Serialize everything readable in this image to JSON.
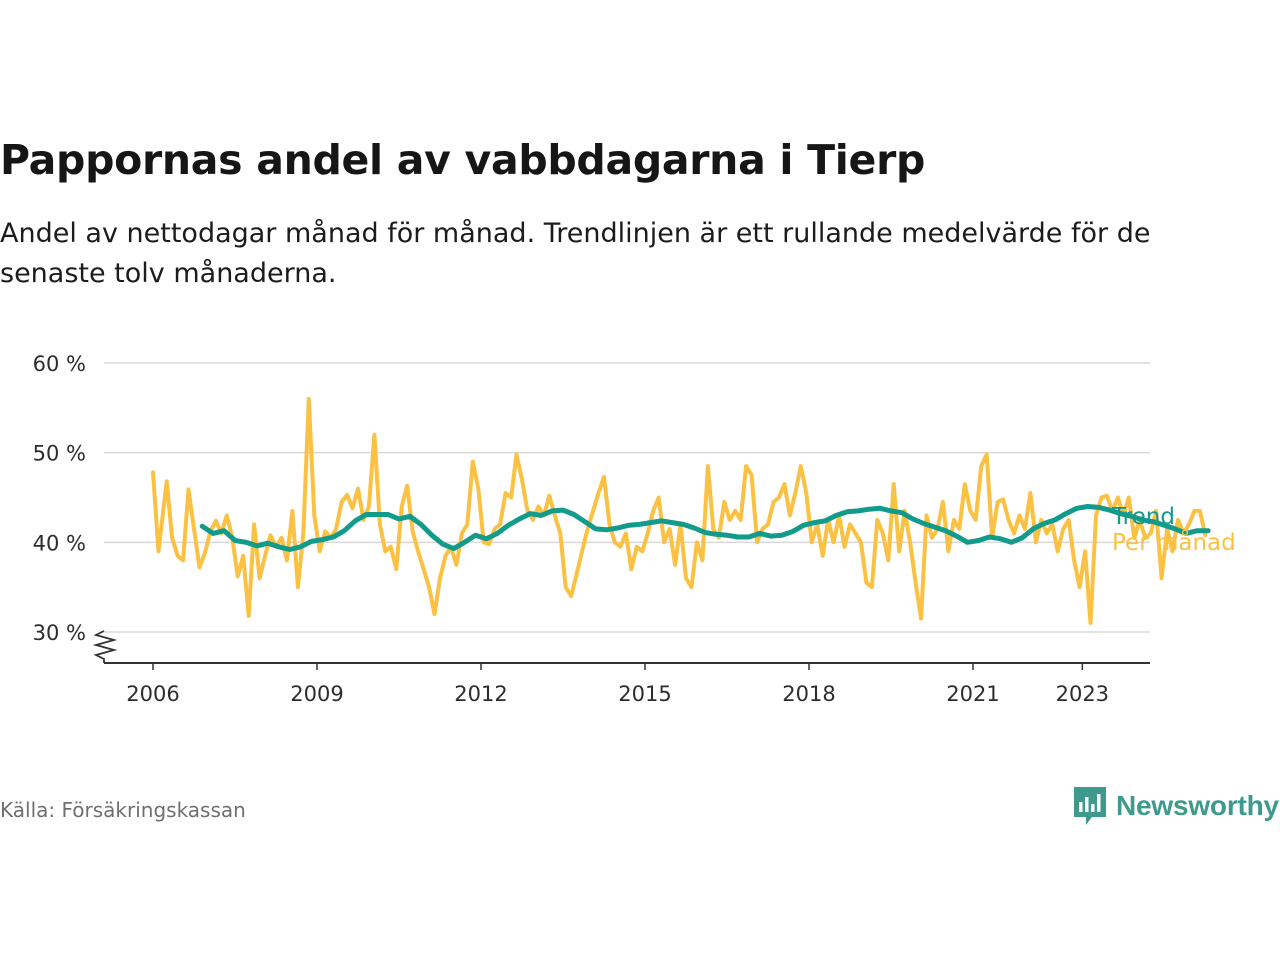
{
  "title": "Pappornas andel av vabbdagarna i Tierp",
  "subtitle": "Andel av nettodagar månad för månad. Trendlinjen är ett rullande medelvärde för de senaste tolv månaderna.",
  "source": "Källa: Försäkringskassan",
  "brand": {
    "name": "Newsworthy",
    "icon": "newsworthy-logo-icon",
    "color": "#3d9a8c"
  },
  "chart_data": {
    "type": "line",
    "title": "Pappornas andel av vabbdagarna i Tierp",
    "xlabel": "",
    "ylabel": "",
    "ylim": [
      26.5,
      60
    ],
    "y_ticks": [
      30,
      40,
      50,
      60
    ],
    "y_tick_labels": [
      "30 %",
      "40 %",
      "50 %",
      "60 %"
    ],
    "y_axis_break": true,
    "x_range": [
      2005.6,
      2024.0
    ],
    "x_ticks": [
      2006,
      2009,
      2012,
      2015,
      2018,
      2021,
      2023
    ],
    "x_tick_labels": [
      "2006",
      "2009",
      "2012",
      "2015",
      "2018",
      "2021",
      "2023"
    ],
    "grid": true,
    "legend": "right-end labels",
    "series": [
      {
        "name": "Per månad",
        "color": "#fbc143",
        "points": [
          [
            2006.0,
            47.8
          ],
          [
            2006.1,
            39.0
          ],
          [
            2006.25,
            46.8
          ],
          [
            2006.35,
            40.5
          ],
          [
            2006.45,
            38.5
          ],
          [
            2006.55,
            38.0
          ],
          [
            2006.65,
            45.9
          ],
          [
            2006.75,
            41.5
          ],
          [
            2006.85,
            37.2
          ],
          [
            2006.95,
            38.8
          ],
          [
            2007.05,
            41.2
          ],
          [
            2007.15,
            42.4
          ],
          [
            2007.25,
            41.0
          ],
          [
            2007.35,
            43.0
          ],
          [
            2007.45,
            40.5
          ],
          [
            2007.55,
            36.2
          ],
          [
            2007.65,
            38.5
          ],
          [
            2007.75,
            31.8
          ],
          [
            2007.85,
            42.0
          ],
          [
            2007.95,
            36.0
          ],
          [
            2008.05,
            38.5
          ],
          [
            2008.15,
            40.8
          ],
          [
            2008.25,
            39.5
          ],
          [
            2008.35,
            40.5
          ],
          [
            2008.45,
            38.0
          ],
          [
            2008.55,
            43.5
          ],
          [
            2008.65,
            35.0
          ],
          [
            2008.75,
            41.0
          ],
          [
            2008.85,
            56.0
          ],
          [
            2008.95,
            43.0
          ],
          [
            2009.05,
            39.0
          ],
          [
            2009.15,
            41.2
          ],
          [
            2009.25,
            40.5
          ],
          [
            2009.35,
            41.5
          ],
          [
            2009.45,
            44.5
          ],
          [
            2009.55,
            45.3
          ],
          [
            2009.65,
            43.8
          ],
          [
            2009.75,
            46.0
          ],
          [
            2009.85,
            42.5
          ],
          [
            2009.95,
            44.0
          ],
          [
            2010.05,
            52.0
          ],
          [
            2010.15,
            42.0
          ],
          [
            2010.25,
            39.0
          ],
          [
            2010.35,
            39.5
          ],
          [
            2010.45,
            37.0
          ],
          [
            2010.55,
            44.0
          ],
          [
            2010.65,
            46.3
          ],
          [
            2010.75,
            41.2
          ],
          [
            2010.85,
            39.0
          ],
          [
            2010.95,
            37.0
          ],
          [
            2011.05,
            35.0
          ],
          [
            2011.15,
            32.0
          ],
          [
            2011.25,
            36.0
          ],
          [
            2011.35,
            38.5
          ],
          [
            2011.45,
            39.5
          ],
          [
            2011.55,
            37.5
          ],
          [
            2011.65,
            41.0
          ],
          [
            2011.75,
            42.0
          ],
          [
            2011.85,
            49.0
          ],
          [
            2011.95,
            46.0
          ],
          [
            2012.05,
            40.0
          ],
          [
            2012.15,
            39.8
          ],
          [
            2012.25,
            41.5
          ],
          [
            2012.35,
            42.0
          ],
          [
            2012.45,
            45.5
          ],
          [
            2012.55,
            45.0
          ],
          [
            2012.65,
            49.8
          ],
          [
            2012.75,
            47.0
          ],
          [
            2012.85,
            43.5
          ],
          [
            2012.95,
            42.5
          ],
          [
            2013.05,
            44.0
          ],
          [
            2013.15,
            43.0
          ],
          [
            2013.25,
            45.2
          ],
          [
            2013.35,
            43.0
          ],
          [
            2013.45,
            41.0
          ],
          [
            2013.55,
            35.0
          ],
          [
            2013.65,
            34.0
          ],
          [
            2013.75,
            36.5
          ],
          [
            2013.85,
            39.0
          ],
          [
            2013.95,
            41.5
          ],
          [
            2014.05,
            43.5
          ],
          [
            2014.15,
            45.5
          ],
          [
            2014.25,
            47.3
          ],
          [
            2014.35,
            42.0
          ],
          [
            2014.45,
            40.0
          ],
          [
            2014.55,
            39.5
          ],
          [
            2014.65,
            41.0
          ],
          [
            2014.75,
            37.0
          ],
          [
            2014.85,
            39.5
          ],
          [
            2014.95,
            39.0
          ],
          [
            2015.05,
            41.0
          ],
          [
            2015.15,
            43.5
          ],
          [
            2015.25,
            45.0
          ],
          [
            2015.35,
            40.0
          ],
          [
            2015.45,
            41.5
          ],
          [
            2015.55,
            37.5
          ],
          [
            2015.65,
            42.0
          ],
          [
            2015.75,
            36.0
          ],
          [
            2015.85,
            35.0
          ],
          [
            2015.95,
            40.0
          ],
          [
            2016.05,
            38.0
          ],
          [
            2016.15,
            48.5
          ],
          [
            2016.25,
            41.5
          ],
          [
            2016.35,
            40.5
          ],
          [
            2016.45,
            44.5
          ],
          [
            2016.55,
            42.5
          ],
          [
            2016.65,
            43.5
          ],
          [
            2016.75,
            42.5
          ],
          [
            2016.85,
            48.5
          ],
          [
            2016.95,
            47.5
          ],
          [
            2017.05,
            40.0
          ],
          [
            2017.15,
            41.5
          ],
          [
            2017.25,
            42.0
          ],
          [
            2017.35,
            44.5
          ],
          [
            2017.45,
            45.0
          ],
          [
            2017.55,
            46.5
          ],
          [
            2017.65,
            43.0
          ],
          [
            2017.75,
            45.5
          ],
          [
            2017.85,
            48.5
          ],
          [
            2017.95,
            45.5
          ],
          [
            2018.05,
            40.0
          ],
          [
            2018.15,
            42.0
          ],
          [
            2018.25,
            38.5
          ],
          [
            2018.35,
            42.5
          ],
          [
            2018.45,
            40.0
          ],
          [
            2018.55,
            43.0
          ],
          [
            2018.65,
            39.5
          ],
          [
            2018.75,
            42.0
          ],
          [
            2018.85,
            41.0
          ],
          [
            2018.95,
            40.0
          ],
          [
            2019.05,
            35.5
          ],
          [
            2019.15,
            35.0
          ],
          [
            2019.25,
            42.5
          ],
          [
            2019.35,
            41.0
          ],
          [
            2019.45,
            38.0
          ],
          [
            2019.55,
            46.5
          ],
          [
            2019.65,
            39.0
          ],
          [
            2019.75,
            43.5
          ],
          [
            2019.85,
            40.0
          ],
          [
            2019.95,
            35.5
          ],
          [
            2020.05,
            31.5
          ],
          [
            2020.15,
            43.0
          ],
          [
            2020.25,
            40.5
          ],
          [
            2020.35,
            41.5
          ],
          [
            2020.45,
            44.5
          ],
          [
            2020.55,
            39.0
          ],
          [
            2020.65,
            42.5
          ],
          [
            2020.75,
            41.5
          ],
          [
            2020.85,
            46.5
          ],
          [
            2020.95,
            43.5
          ],
          [
            2021.05,
            42.5
          ],
          [
            2021.15,
            48.5
          ],
          [
            2021.25,
            49.8
          ],
          [
            2021.35,
            40.5
          ],
          [
            2021.45,
            44.5
          ],
          [
            2021.55,
            44.8
          ],
          [
            2021.65,
            42.5
          ],
          [
            2021.75,
            41.0
          ],
          [
            2021.85,
            43.0
          ],
          [
            2021.95,
            41.5
          ],
          [
            2022.05,
            45.5
          ],
          [
            2022.15,
            40.0
          ],
          [
            2022.25,
            42.5
          ],
          [
            2022.35,
            41.0
          ],
          [
            2022.45,
            42.0
          ],
          [
            2022.55,
            39.0
          ],
          [
            2022.65,
            41.5
          ],
          [
            2022.75,
            42.5
          ],
          [
            2022.85,
            38.0
          ],
          [
            2022.95,
            35.0
          ],
          [
            2023.05,
            39.0
          ],
          [
            2023.15,
            31.0
          ],
          [
            2023.25,
            43.0
          ],
          [
            2023.35,
            45.0
          ],
          [
            2023.45,
            45.2
          ],
          [
            2023.55,
            43.5
          ],
          [
            2023.65,
            45.0
          ],
          [
            2023.75,
            43.0
          ],
          [
            2023.85,
            45.0
          ],
          [
            2023.95,
            40.5
          ],
          [
            2024.05,
            42.5
          ],
          [
            2024.15,
            40.5
          ],
          [
            2024.25,
            41.0
          ],
          [
            2024.35,
            43.5
          ],
          [
            2024.45,
            36.0
          ],
          [
            2024.55,
            41.5
          ],
          [
            2024.65,
            39.0
          ],
          [
            2024.75,
            42.5
          ],
          [
            2024.85,
            41.0
          ],
          [
            2024.95,
            42.0
          ],
          [
            2025.05,
            43.5
          ],
          [
            2025.15,
            43.5
          ],
          [
            2025.25,
            40.8
          ]
        ]
      },
      {
        "name": "Trend",
        "color": "#129a8a",
        "points": [
          [
            2006.9,
            41.8
          ],
          [
            2007.1,
            41.0
          ],
          [
            2007.3,
            41.3
          ],
          [
            2007.5,
            40.2
          ],
          [
            2007.7,
            40.0
          ],
          [
            2007.9,
            39.6
          ],
          [
            2008.1,
            39.9
          ],
          [
            2008.3,
            39.5
          ],
          [
            2008.5,
            39.2
          ],
          [
            2008.7,
            39.5
          ],
          [
            2008.9,
            40.1
          ],
          [
            2009.1,
            40.3
          ],
          [
            2009.3,
            40.6
          ],
          [
            2009.5,
            41.3
          ],
          [
            2009.7,
            42.4
          ],
          [
            2009.9,
            43.1
          ],
          [
            2010.1,
            43.1
          ],
          [
            2010.3,
            43.1
          ],
          [
            2010.5,
            42.6
          ],
          [
            2010.7,
            42.9
          ],
          [
            2010.9,
            42.0
          ],
          [
            2011.1,
            40.8
          ],
          [
            2011.3,
            39.8
          ],
          [
            2011.5,
            39.3
          ],
          [
            2011.7,
            40.0
          ],
          [
            2011.9,
            40.8
          ],
          [
            2012.1,
            40.4
          ],
          [
            2012.3,
            41.0
          ],
          [
            2012.5,
            41.9
          ],
          [
            2012.7,
            42.6
          ],
          [
            2012.9,
            43.2
          ],
          [
            2013.1,
            43.0
          ],
          [
            2013.3,
            43.5
          ],
          [
            2013.5,
            43.6
          ],
          [
            2013.7,
            43.1
          ],
          [
            2013.9,
            42.3
          ],
          [
            2014.1,
            41.5
          ],
          [
            2014.3,
            41.4
          ],
          [
            2014.5,
            41.6
          ],
          [
            2014.7,
            41.9
          ],
          [
            2014.9,
            42.0
          ],
          [
            2015.1,
            42.2
          ],
          [
            2015.3,
            42.4
          ],
          [
            2015.5,
            42.2
          ],
          [
            2015.7,
            42.0
          ],
          [
            2015.9,
            41.6
          ],
          [
            2016.1,
            41.1
          ],
          [
            2016.3,
            40.9
          ],
          [
            2016.5,
            40.8
          ],
          [
            2016.7,
            40.6
          ],
          [
            2016.9,
            40.6
          ],
          [
            2017.1,
            41.0
          ],
          [
            2017.3,
            40.7
          ],
          [
            2017.5,
            40.8
          ],
          [
            2017.7,
            41.2
          ],
          [
            2017.9,
            41.9
          ],
          [
            2018.1,
            42.2
          ],
          [
            2018.3,
            42.4
          ],
          [
            2018.5,
            43.0
          ],
          [
            2018.7,
            43.4
          ],
          [
            2018.9,
            43.5
          ],
          [
            2019.1,
            43.7
          ],
          [
            2019.3,
            43.8
          ],
          [
            2019.5,
            43.5
          ],
          [
            2019.7,
            43.3
          ],
          [
            2019.9,
            42.6
          ],
          [
            2020.1,
            42.1
          ],
          [
            2020.3,
            41.7
          ],
          [
            2020.5,
            41.3
          ],
          [
            2020.7,
            40.7
          ],
          [
            2020.9,
            40.0
          ],
          [
            2021.1,
            40.2
          ],
          [
            2021.3,
            40.6
          ],
          [
            2021.5,
            40.4
          ],
          [
            2021.7,
            40.0
          ],
          [
            2021.9,
            40.5
          ],
          [
            2022.1,
            41.5
          ],
          [
            2022.3,
            42.1
          ],
          [
            2022.5,
            42.5
          ],
          [
            2022.7,
            43.2
          ],
          [
            2022.9,
            43.8
          ],
          [
            2023.1,
            44.0
          ],
          [
            2023.3,
            43.9
          ],
          [
            2023.5,
            43.6
          ],
          [
            2023.7,
            43.2
          ],
          [
            2023.9,
            42.9
          ],
          [
            2024.1,
            42.5
          ],
          [
            2024.3,
            42.3
          ],
          [
            2024.5,
            41.9
          ],
          [
            2024.7,
            41.5
          ],
          [
            2024.9,
            41.0
          ],
          [
            2025.1,
            41.3
          ],
          [
            2025.3,
            41.3
          ]
        ]
      }
    ]
  }
}
